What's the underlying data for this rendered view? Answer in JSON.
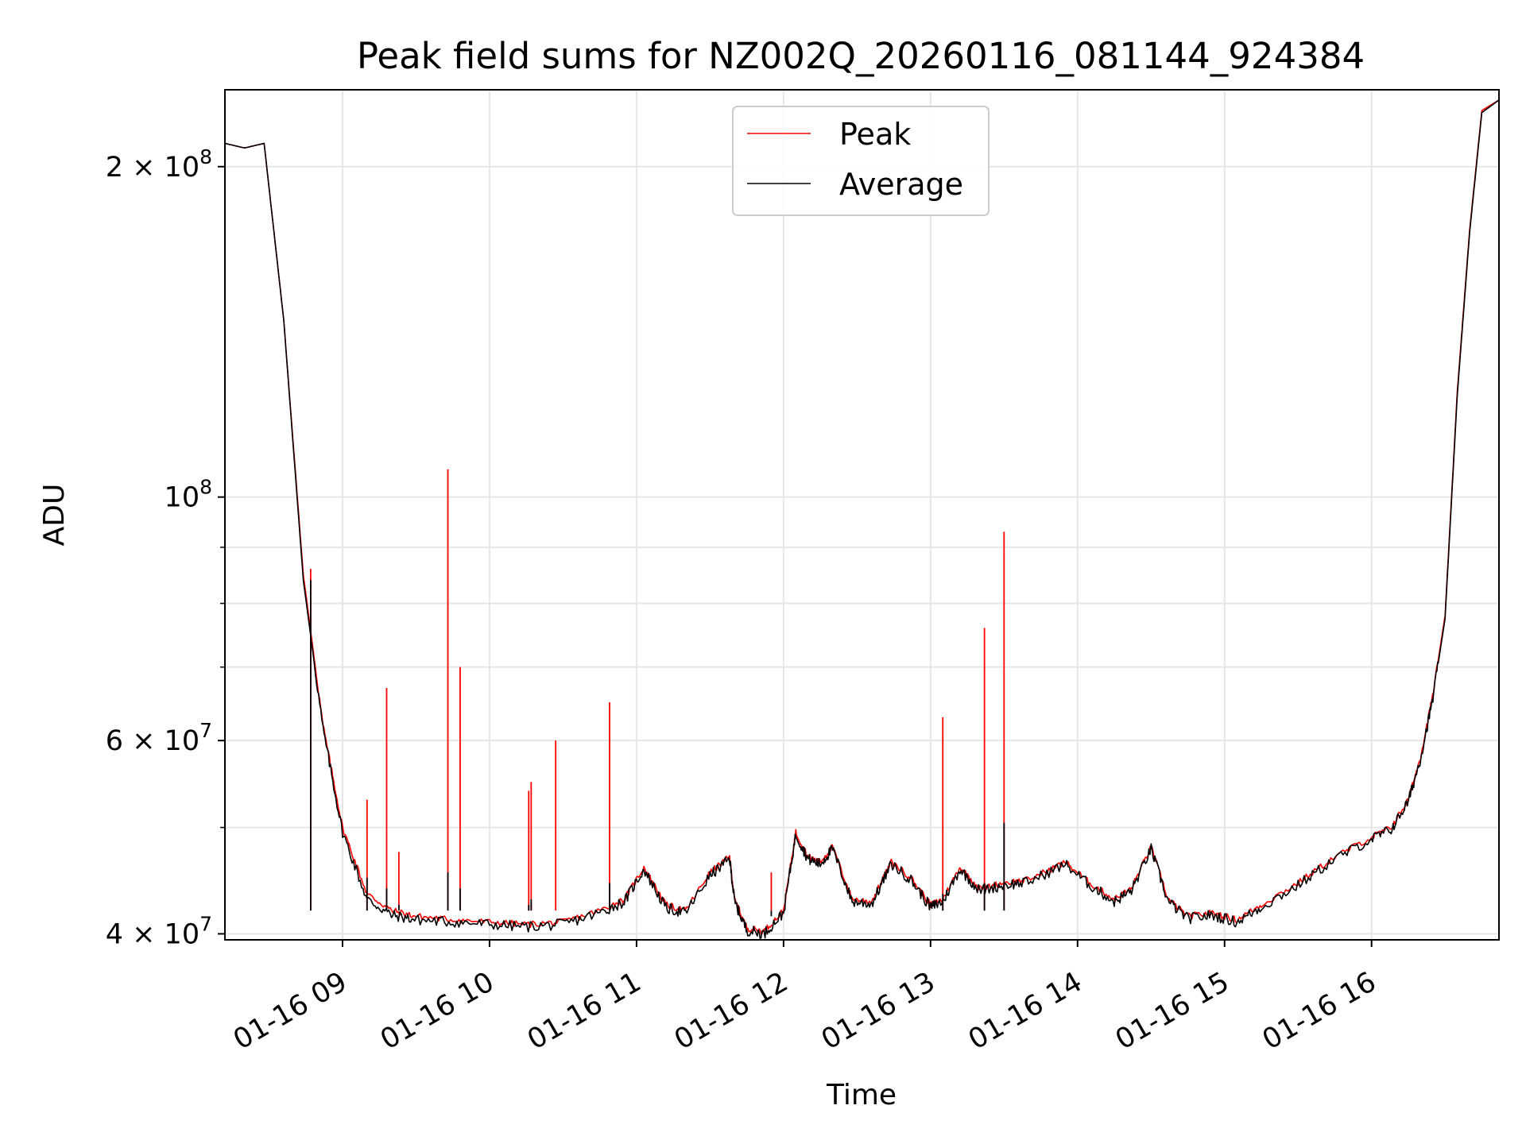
{
  "chart_data": {
    "type": "line",
    "title": "Peak field sums for NZ002Q_20260116_081144_924384",
    "xlabel": "Time",
    "ylabel": "ADU",
    "yscale": "log",
    "xlim": [
      "2026-01-16 08:12",
      "2026-01-16 16:52"
    ],
    "ylim": [
      39500000,
      235000000
    ],
    "grid": true,
    "legend": "top-center",
    "x_ticks": [
      "01-16 09",
      "01-16 10",
      "01-16 11",
      "01-16 12",
      "01-16 13",
      "01-16 14",
      "01-16 15",
      "01-16 16"
    ],
    "y_ticks": [
      {
        "value": 200000000,
        "base": "2 × 10",
        "exp": "8"
      },
      {
        "value": 100000000,
        "base": "10",
        "exp": "8"
      },
      {
        "value": 60000000,
        "base": "6 × 10",
        "exp": "7"
      },
      {
        "value": 40000000,
        "base": "4 × 10",
        "exp": "7"
      }
    ],
    "y_minor_ticks": [
      50000000,
      70000000,
      80000000,
      90000000
    ],
    "series": [
      {
        "name": "Peak",
        "color": "#ff0000",
        "x": [
          "2026-01-16 08:12",
          "2026-01-16 08:20",
          "2026-01-16 08:28",
          "2026-01-16 08:36",
          "2026-01-16 08:44",
          "2026-01-16 08:52",
          "2026-01-16 09:00",
          "2026-01-16 09:10",
          "2026-01-16 09:20",
          "2026-01-16 09:30",
          "2026-01-16 09:45",
          "2026-01-16 10:00",
          "2026-01-16 10:15",
          "2026-01-16 10:30",
          "2026-01-16 10:45",
          "2026-01-16 10:55",
          "2026-01-16 11:03",
          "2026-01-16 11:12",
          "2026-01-16 11:20",
          "2026-01-16 11:30",
          "2026-01-16 11:38",
          "2026-01-16 11:40",
          "2026-01-16 11:45",
          "2026-01-16 11:52",
          "2026-01-16 12:00",
          "2026-01-16 12:05",
          "2026-01-16 12:10",
          "2026-01-16 12:15",
          "2026-01-16 12:20",
          "2026-01-16 12:28",
          "2026-01-16 12:36",
          "2026-01-16 12:44",
          "2026-01-16 12:52",
          "2026-01-16 13:00",
          "2026-01-16 13:05",
          "2026-01-16 13:12",
          "2026-01-16 13:20",
          "2026-01-16 13:30",
          "2026-01-16 13:40",
          "2026-01-16 13:55",
          "2026-01-16 14:05",
          "2026-01-16 14:15",
          "2026-01-16 14:22",
          "2026-01-16 14:30",
          "2026-01-16 14:37",
          "2026-01-16 14:45",
          "2026-01-16 14:55",
          "2026-01-16 15:05",
          "2026-01-16 15:15",
          "2026-01-16 15:30",
          "2026-01-16 15:45",
          "2026-01-16 16:00",
          "2026-01-16 16:08",
          "2026-01-16 16:15",
          "2026-01-16 16:20",
          "2026-01-16 16:25",
          "2026-01-16 16:30",
          "2026-01-16 16:35",
          "2026-01-16 16:40",
          "2026-01-16 16:45",
          "2026-01-16 16:52"
        ],
        "y": [
          210000000,
          208000000,
          210000000,
          145000000,
          85000000,
          62000000,
          50000000,
          43500000,
          42000000,
          41500000,
          41200000,
          41000000,
          40800000,
          41000000,
          42000000,
          43000000,
          46000000,
          42500000,
          42000000,
          45500000,
          47000000,
          43000000,
          40500000,
          40200000,
          42000000,
          49500000,
          47000000,
          46500000,
          48000000,
          43000000,
          42800000,
          46500000,
          45000000,
          42500000,
          43000000,
          46000000,
          44000000,
          44500000,
          44800000,
          46500000,
          44500000,
          43000000,
          44000000,
          48000000,
          43000000,
          41500000,
          41800000,
          41200000,
          42500000,
          44500000,
          47000000,
          49000000,
          50000000,
          53000000,
          58000000,
          66000000,
          78000000,
          125000000,
          175000000,
          225000000,
          230000000
        ]
      },
      {
        "name": "Average",
        "color": "#000000",
        "x": [
          "2026-01-16 08:12",
          "2026-01-16 08:20",
          "2026-01-16 08:28",
          "2026-01-16 08:36",
          "2026-01-16 08:44",
          "2026-01-16 08:52",
          "2026-01-16 09:00",
          "2026-01-16 09:10",
          "2026-01-16 09:20",
          "2026-01-16 09:30",
          "2026-01-16 09:45",
          "2026-01-16 10:00",
          "2026-01-16 10:15",
          "2026-01-16 10:30",
          "2026-01-16 10:45",
          "2026-01-16 10:55",
          "2026-01-16 11:03",
          "2026-01-16 11:12",
          "2026-01-16 11:20",
          "2026-01-16 11:30",
          "2026-01-16 11:38",
          "2026-01-16 11:40",
          "2026-01-16 11:45",
          "2026-01-16 11:52",
          "2026-01-16 12:00",
          "2026-01-16 12:05",
          "2026-01-16 12:10",
          "2026-01-16 12:15",
          "2026-01-16 12:20",
          "2026-01-16 12:28",
          "2026-01-16 12:36",
          "2026-01-16 12:44",
          "2026-01-16 12:52",
          "2026-01-16 13:00",
          "2026-01-16 13:05",
          "2026-01-16 13:12",
          "2026-01-16 13:20",
          "2026-01-16 13:30",
          "2026-01-16 13:40",
          "2026-01-16 13:55",
          "2026-01-16 14:05",
          "2026-01-16 14:15",
          "2026-01-16 14:22",
          "2026-01-16 14:30",
          "2026-01-16 14:37",
          "2026-01-16 14:45",
          "2026-01-16 14:55",
          "2026-01-16 15:05",
          "2026-01-16 15:15",
          "2026-01-16 15:30",
          "2026-01-16 15:45",
          "2026-01-16 16:00",
          "2026-01-16 16:08",
          "2026-01-16 16:15",
          "2026-01-16 16:20",
          "2026-01-16 16:25",
          "2026-01-16 16:30",
          "2026-01-16 16:35",
          "2026-01-16 16:40",
          "2026-01-16 16:45",
          "2026-01-16 16:52"
        ],
        "y": [
          210000000,
          208000000,
          210000000,
          145000000,
          84000000,
          61500000,
          49500000,
          43000000,
          41600000,
          41200000,
          41000000,
          40800000,
          40600000,
          40800000,
          41800000,
          42800000,
          45800000,
          42200000,
          41800000,
          45200000,
          46800000,
          42800000,
          40300000,
          40000000,
          41800000,
          49300000,
          46800000,
          46300000,
          47800000,
          42800000,
          42600000,
          46300000,
          44800000,
          42300000,
          42800000,
          45800000,
          43800000,
          44300000,
          44600000,
          46300000,
          44300000,
          42800000,
          43800000,
          47800000,
          42800000,
          41300000,
          41600000,
          41000000,
          42300000,
          44300000,
          46800000,
          48800000,
          49800000,
          52800000,
          57800000,
          65500000,
          77500000,
          124000000,
          174000000,
          224000000,
          230000000
        ]
      }
    ],
    "spikes": [
      {
        "x": "2026-01-16 08:47",
        "peak": 86000000,
        "average": 84000000
      },
      {
        "x": "2026-01-16 09:10",
        "peak": 53000000,
        "average": 45000000
      },
      {
        "x": "2026-01-16 09:18",
        "peak": 67000000,
        "average": 44000000
      },
      {
        "x": "2026-01-16 09:23",
        "peak": 47500000,
        "average": 42500000
      },
      {
        "x": "2026-01-16 09:43",
        "peak": 106000000,
        "average": 45500000
      },
      {
        "x": "2026-01-16 09:48",
        "peak": 70000000,
        "average": 44000000
      },
      {
        "x": "2026-01-16 10:16",
        "peak": 54000000,
        "average": 42500000
      },
      {
        "x": "2026-01-16 10:17",
        "peak": 55000000,
        "average": 43000000
      },
      {
        "x": "2026-01-16 10:27",
        "peak": 60000000,
        "average": 42000000
      },
      {
        "x": "2026-01-16 10:49",
        "peak": 65000000,
        "average": 44500000
      },
      {
        "x": "2026-01-16 11:55",
        "peak": 45500000,
        "average": 41500000
      },
      {
        "x": "2026-01-16 13:05",
        "peak": 63000000,
        "average": 43500000
      },
      {
        "x": "2026-01-16 13:22",
        "peak": 76000000,
        "average": 44500000
      },
      {
        "x": "2026-01-16 13:30",
        "peak": 93000000,
        "average": 50500000
      }
    ]
  }
}
